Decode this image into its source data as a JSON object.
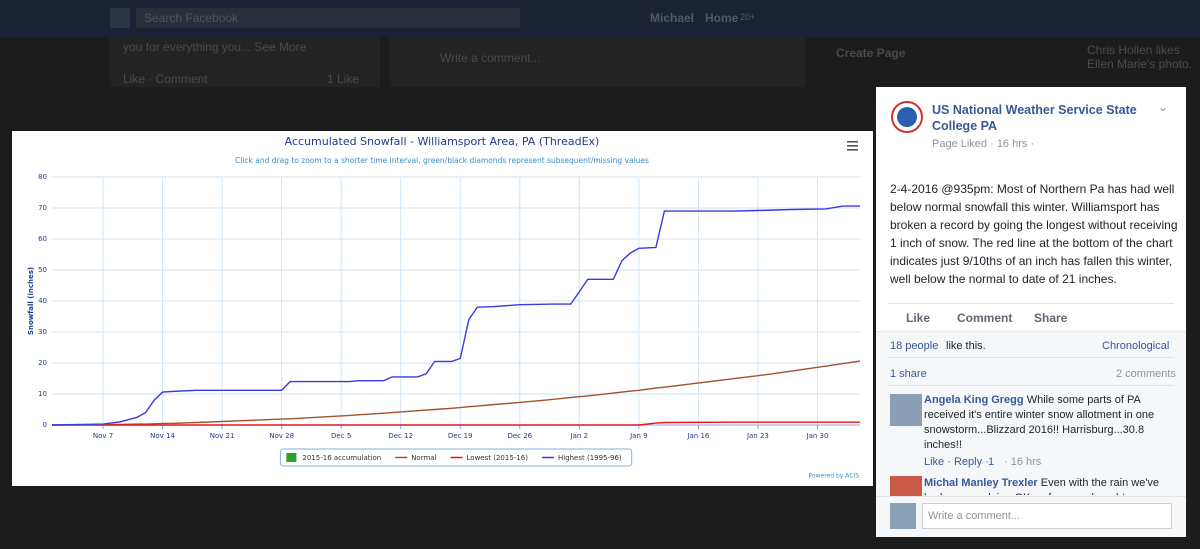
{
  "background": {
    "search": "Search Facebook",
    "user": "Michael",
    "home": "Home",
    "home_count": "20+",
    "snippet": "you for everything you... See More",
    "snippet_actions": "Like · Comment",
    "snippet_likes": "1 Like",
    "write_comment": "Write a comment...",
    "create_page": "Create Page",
    "ticker": "Chris Hollen likes Ellen Marie's photo."
  },
  "chart_data": {
    "type": "line",
    "title": "Accumulated Snowfall - Williamsport Area, PA (ThreadEx)",
    "subtitle": "Click and drag to zoom to a shorter time interval, green/black diamonds represent subsequent/missing values",
    "y_label": "Snowfall (inches)",
    "credit": "Powered by ACIS",
    "x": [
      "Nov 1",
      "Nov 7",
      "Nov 9",
      "Nov 11",
      "Nov 12",
      "Nov 13",
      "Nov 14",
      "Nov 15",
      "Nov 18",
      "Nov 28",
      "Nov 29",
      "Dec 6",
      "Dec 7",
      "Dec 10",
      "Dec 11",
      "Dec 14",
      "Dec 15",
      "Dec 16",
      "Dec 18",
      "Dec 19",
      "Dec 20",
      "Dec 21",
      "Dec 23",
      "Dec 26",
      "Dec 30",
      "Jan 1",
      "Jan 3",
      "Jan 6",
      "Jan 7",
      "Jan 8",
      "Jan 9",
      "Jan 11",
      "Jan 12",
      "Jan 20",
      "Jan 23",
      "Jan 27",
      "Jan 31",
      "Feb 2",
      "Feb 4"
    ],
    "xlim": [
      "Nov 1",
      "Feb 4"
    ],
    "xticks": [
      "Nov 7",
      "Nov 14",
      "Nov 21",
      "Nov 28",
      "Dec 5",
      "Dec 12",
      "Dec 19",
      "Dec 26",
      "Jan 2",
      "Jan 9",
      "Jan 16",
      "Jan 23",
      "Jan 30"
    ],
    "ylim": [
      0,
      80
    ],
    "yticks": [
      0,
      10,
      20,
      30,
      40,
      50,
      60,
      70,
      80
    ],
    "grid": true,
    "legend": "bottom",
    "series": [
      {
        "name": "2015-16 accumulation",
        "color": "#2ca02c",
        "values": [
          null,
          null,
          null,
          null,
          null,
          null,
          null,
          null,
          null,
          null,
          null,
          null,
          null,
          null,
          null,
          null,
          null,
          null,
          null,
          null,
          null,
          null,
          null,
          null,
          null,
          null,
          null,
          null,
          null,
          null,
          null,
          null,
          null,
          null,
          null,
          null,
          null,
          null,
          null
        ]
      },
      {
        "name": "Normal",
        "color": "#a0522d",
        "values": [
          0,
          0.1,
          0.2,
          0.3,
          0.3,
          0.4,
          0.5,
          0.5,
          0.8,
          1.9,
          2.0,
          3.1,
          3.3,
          3.8,
          4.0,
          4.6,
          4.8,
          5.0,
          5.4,
          5.6,
          5.9,
          6.1,
          6.6,
          7.3,
          8.3,
          8.9,
          9.4,
          10.3,
          10.6,
          10.9,
          11.2,
          11.9,
          12.2,
          14.9,
          15.9,
          17.4,
          19.0,
          19.8,
          20.6
        ]
      },
      {
        "name": "Lowest (2015-16)",
        "color": "#e8141b",
        "values": [
          0,
          0,
          0,
          0,
          0,
          0,
          0,
          0,
          0,
          0,
          0,
          0,
          0,
          0,
          0,
          0,
          0,
          0,
          0,
          0,
          0,
          0,
          0,
          0,
          0,
          0,
          0,
          0,
          0,
          0,
          0,
          0.6,
          0.8,
          0.9,
          0.9,
          0.9,
          0.9,
          0.9,
          0.9
        ]
      },
      {
        "name": "Highest (1995-96)",
        "color": "#3a3ae0",
        "values": [
          0,
          0.3,
          1,
          2.5,
          4,
          8,
          10.6,
          10.8,
          11.2,
          11.2,
          14,
          14,
          14.3,
          14.3,
          15.5,
          15.5,
          16.5,
          20.5,
          20.5,
          21.5,
          34,
          38,
          38.2,
          38.8,
          39,
          39,
          47,
          47,
          53,
          55.5,
          57,
          57.3,
          69,
          69,
          69.2,
          69.5,
          69.7,
          70.6,
          70.6
        ]
      }
    ]
  },
  "post": {
    "page_name": "US National Weather Service State College PA",
    "meta": "Page Liked · 16 hrs ·",
    "text": "2-4-2016 @935pm: Most of Northern Pa has had well below normal snowfall this winter. Williamsport has broken a record by going the longest without receiving 1 inch of snow. The red line at the bottom of the chart indicates just 9/10ths of an inch has fallen this winter, well below the normal to date of 21 inches.",
    "actions": [
      "Like",
      "Comment",
      "Share"
    ],
    "likes_people": "18 people",
    "likes_text": "like this.",
    "sort": "Chronological",
    "shares": "1 share",
    "comments_count": "2 comments",
    "comments": [
      {
        "author": "Angela King Gregg",
        "text": "While some parts of PA received it's entire winter snow allotment in one snowstorm...Blizzard 2016!! Harrisburg...30.8 inches!!",
        "actions": "Like · Reply ·",
        "reactions": "1",
        "time": "· 16 hrs"
      },
      {
        "author": "Michal Manley Trexler",
        "text": "Even with the rain we've had, are we doing OK as far as a drought index???"
      }
    ],
    "write_comment": "Write a comment..."
  }
}
